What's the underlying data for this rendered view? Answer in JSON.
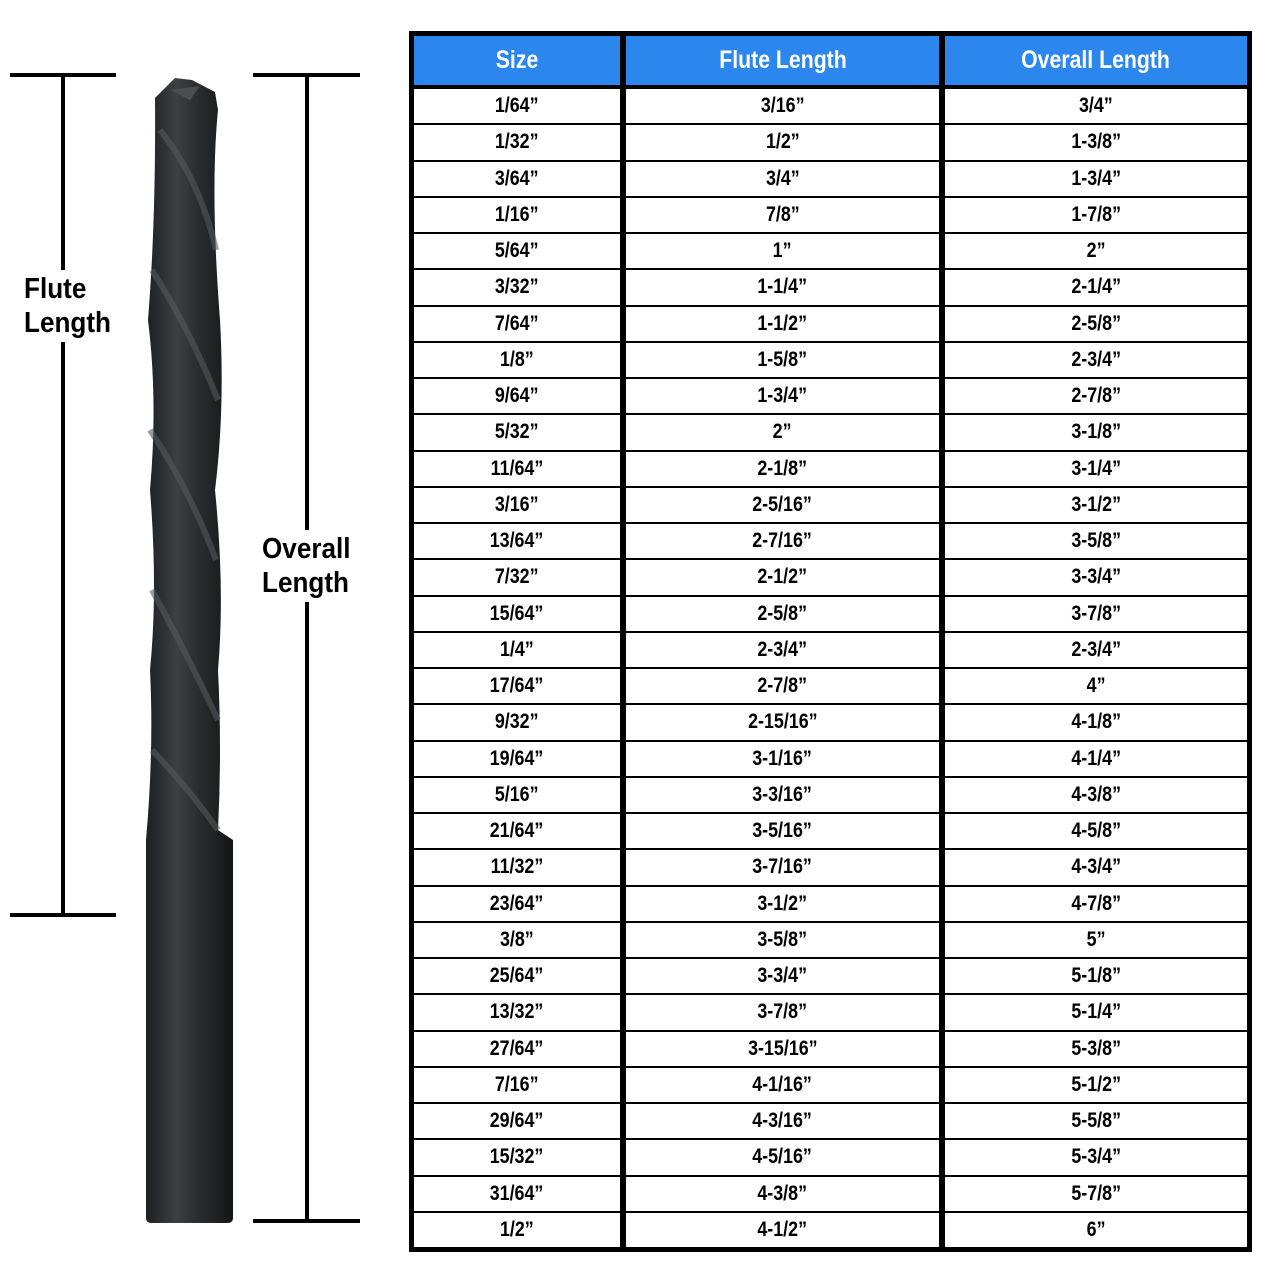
{
  "labels": {
    "flute_length": [
      "Flute",
      "Length"
    ],
    "overall_length": [
      "Overall",
      "Length"
    ]
  },
  "colors": {
    "header": "#2b86ee",
    "drill": "#2a2d2f"
  },
  "icons": {
    "drill": "drill-bit-image"
  },
  "table": {
    "headers": [
      "Size",
      "Flute Length",
      "Overall Length"
    ],
    "rows": [
      [
        "1/64”",
        "3/16”",
        "3/4”"
      ],
      [
        "1/32”",
        "1/2”",
        "1-3/8”"
      ],
      [
        "3/64”",
        "3/4”",
        "1-3/4”"
      ],
      [
        "1/16”",
        "7/8”",
        "1-7/8”"
      ],
      [
        "5/64”",
        "1”",
        "2”"
      ],
      [
        "3/32”",
        "1-1/4”",
        "2-1/4”"
      ],
      [
        "7/64”",
        "1-1/2”",
        "2-5/8”"
      ],
      [
        "1/8”",
        "1-5/8”",
        "2-3/4”"
      ],
      [
        "9/64”",
        "1-3/4”",
        "2-7/8”"
      ],
      [
        "5/32”",
        "2”",
        "3-1/8”"
      ],
      [
        "11/64”",
        "2-1/8”",
        "3-1/4”"
      ],
      [
        "3/16”",
        "2-5/16”",
        "3-1/2”"
      ],
      [
        "13/64”",
        "2-7/16”",
        "3-5/8”"
      ],
      [
        "7/32”",
        "2-1/2”",
        "3-3/4”"
      ],
      [
        "15/64”",
        "2-5/8”",
        "3-7/8”"
      ],
      [
        "1/4”",
        "2-3/4”",
        "2-3/4”"
      ],
      [
        "17/64”",
        "2-7/8”",
        "4”"
      ],
      [
        "9/32”",
        "2-15/16”",
        "4-1/8”"
      ],
      [
        "19/64”",
        "3-1/16”",
        "4-1/4”"
      ],
      [
        "5/16”",
        "3-3/16”",
        "4-3/8”"
      ],
      [
        "21/64”",
        "3-5/16”",
        "4-5/8”"
      ],
      [
        "11/32”",
        "3-7/16”",
        "4-3/4”"
      ],
      [
        "23/64”",
        "3-1/2”",
        "4-7/8”"
      ],
      [
        "3/8”",
        "3-5/8”",
        "5”"
      ],
      [
        "25/64”",
        "3-3/4”",
        "5-1/8”"
      ],
      [
        "13/32”",
        "3-7/8”",
        "5-1/4”"
      ],
      [
        "27/64”",
        "3-15/16”",
        "5-3/8”"
      ],
      [
        "7/16”",
        "4-1/16”",
        "5-1/2”"
      ],
      [
        "29/64”",
        "4-3/16”",
        "5-5/8”"
      ],
      [
        "15/32”",
        "4-5/16”",
        "5-3/4”"
      ],
      [
        "31/64”",
        "4-3/8”",
        "5-7/8”"
      ],
      [
        "1/2”",
        "4-1/2”",
        "6”"
      ]
    ]
  }
}
